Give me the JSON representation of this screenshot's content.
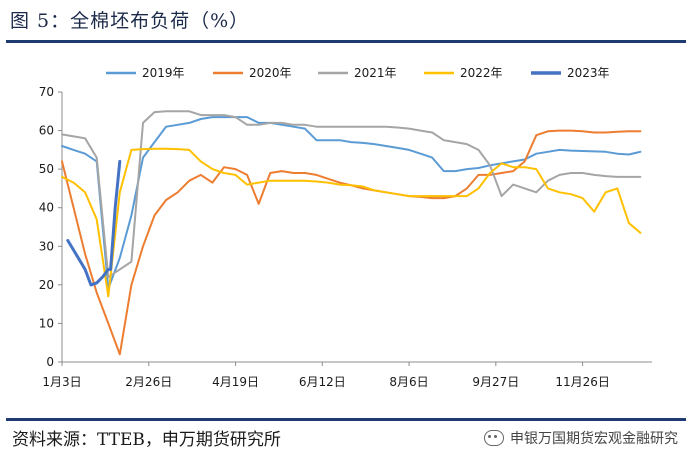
{
  "title": "图 5：全棉坯布负荷（%）",
  "source": "资料来源：TTEB，申万期货研究所",
  "watermark": "申银万国期货宏观金融研究",
  "chart_data": {
    "type": "line",
    "title": "",
    "xlabel": "",
    "ylabel": "",
    "ylim": [
      0,
      70
    ],
    "yticks": [
      0,
      10,
      20,
      30,
      40,
      50,
      60,
      70
    ],
    "xlim": [
      0,
      51
    ],
    "xtick_positions": [
      0,
      7.5,
      15,
      22.5,
      30,
      37.5,
      45
    ],
    "xtick_labels": [
      "1月3日",
      "2月26日",
      "4月19日",
      "6月12日",
      "8月6日",
      "9月27日",
      "11月26日"
    ],
    "legend_position": "top",
    "grid": false,
    "series": [
      {
        "name": "2019年",
        "color": "#5b9bd5",
        "x": [
          0,
          1,
          2,
          3,
          4,
          5,
          6,
          7,
          8,
          9,
          10,
          11,
          12,
          13,
          14,
          15,
          16,
          17,
          18,
          19,
          20,
          21,
          22,
          23,
          24,
          25,
          26,
          27,
          28,
          29,
          30,
          31,
          32,
          33,
          34,
          35,
          36,
          37,
          38,
          39,
          40,
          41,
          42,
          43,
          44,
          45,
          46,
          47,
          48,
          49,
          50
        ],
        "values": [
          56,
          55,
          54,
          52,
          19,
          27,
          38,
          53,
          57,
          61,
          61.5,
          62,
          63,
          63.5,
          63.5,
          63.5,
          63.5,
          62,
          62,
          61.5,
          61,
          60.5,
          57.5,
          57.5,
          57.5,
          57,
          56.8,
          56.5,
          56,
          55.5,
          55,
          54,
          53,
          49.5,
          49.5,
          50,
          50.3,
          51,
          51.5,
          52,
          52.5,
          54,
          54.5,
          55,
          54.8,
          54.7,
          54.6,
          54.5,
          54,
          53.8,
          54.5
        ]
      },
      {
        "name": "2020年",
        "color": "#ed7d31",
        "x": [
          0,
          1,
          2,
          3,
          4,
          5,
          6,
          7,
          8,
          9,
          10,
          11,
          12,
          13,
          14,
          15,
          16,
          17,
          18,
          19,
          20,
          21,
          22,
          23,
          24,
          25,
          26,
          27,
          28,
          29,
          30,
          31,
          32,
          33,
          34,
          35,
          36,
          37,
          38,
          39,
          40,
          41,
          42,
          43,
          44,
          45,
          46,
          47,
          48,
          49,
          50
        ],
        "values": [
          52,
          40,
          28,
          18,
          10,
          2,
          20,
          30,
          38,
          42,
          44,
          47,
          48.5,
          46.5,
          50.5,
          50,
          48.5,
          41,
          49,
          49.5,
          49,
          49,
          48.5,
          47.5,
          46.5,
          45.8,
          45,
          44.5,
          44,
          43.5,
          43,
          42.8,
          42.5,
          42.5,
          43,
          45,
          48.5,
          48.5,
          49,
          49.5,
          52,
          58.8,
          59.8,
          60,
          60,
          59.8,
          59.5,
          59.5,
          59.7,
          59.8,
          59.8
        ]
      },
      {
        "name": "2021年",
        "color": "#a5a5a5",
        "x": [
          0,
          1,
          2,
          3,
          4,
          5,
          6,
          7,
          8,
          9,
          10,
          11,
          12,
          13,
          14,
          15,
          16,
          17,
          18,
          19,
          20,
          21,
          22,
          23,
          24,
          25,
          26,
          27,
          28,
          29,
          30,
          31,
          32,
          33,
          34,
          35,
          36,
          37,
          38,
          39,
          40,
          41,
          42,
          43,
          44,
          45,
          46,
          47,
          48,
          49,
          50
        ],
        "values": [
          59,
          58.5,
          58,
          53,
          22,
          24,
          26,
          62,
          64.8,
          65,
          65,
          65,
          64,
          64,
          64,
          63.5,
          61.5,
          61.5,
          62,
          62,
          61.5,
          61.5,
          61,
          61,
          61,
          61,
          61,
          61,
          61,
          60.8,
          60.5,
          60,
          59.5,
          57.5,
          57,
          56.5,
          55,
          51,
          43,
          46,
          45,
          44,
          47,
          48.5,
          49,
          49,
          48.5,
          48.2,
          48,
          48,
          48
        ]
      },
      {
        "name": "2022年",
        "color": "#ffc000",
        "x": [
          0,
          1,
          2,
          3,
          4,
          5,
          6,
          7,
          8,
          9,
          10,
          11,
          12,
          13,
          14,
          15,
          16,
          17,
          18,
          19,
          20,
          21,
          22,
          23,
          24,
          25,
          26,
          27,
          28,
          29,
          30,
          31,
          32,
          33,
          34,
          35,
          36,
          37,
          38,
          39,
          40,
          41,
          42,
          43,
          44,
          45,
          46,
          47,
          48,
          49,
          50
        ],
        "values": [
          48,
          46.5,
          44,
          37,
          17,
          44,
          55,
          55.2,
          55.3,
          55.3,
          55.2,
          55,
          52,
          50,
          49,
          48.5,
          46,
          46.5,
          47,
          47,
          47,
          47,
          46.8,
          46.5,
          46,
          45.8,
          45.5,
          44.5,
          44,
          43.5,
          43,
          43,
          43,
          43,
          43,
          43,
          45,
          49,
          51.5,
          50.5,
          50.5,
          50,
          45,
          44,
          43.5,
          42.5,
          39,
          44,
          45,
          36,
          33.5
        ]
      },
      {
        "name": "2023年",
        "color": "#4472c4",
        "x": [
          0.5,
          1,
          1.5,
          2,
          2.5,
          3,
          3.5,
          4,
          4.2,
          4.6,
          5
        ],
        "values": [
          31.5,
          29,
          26.5,
          24,
          20,
          20.5,
          22,
          24,
          24,
          40,
          52
        ]
      }
    ]
  }
}
